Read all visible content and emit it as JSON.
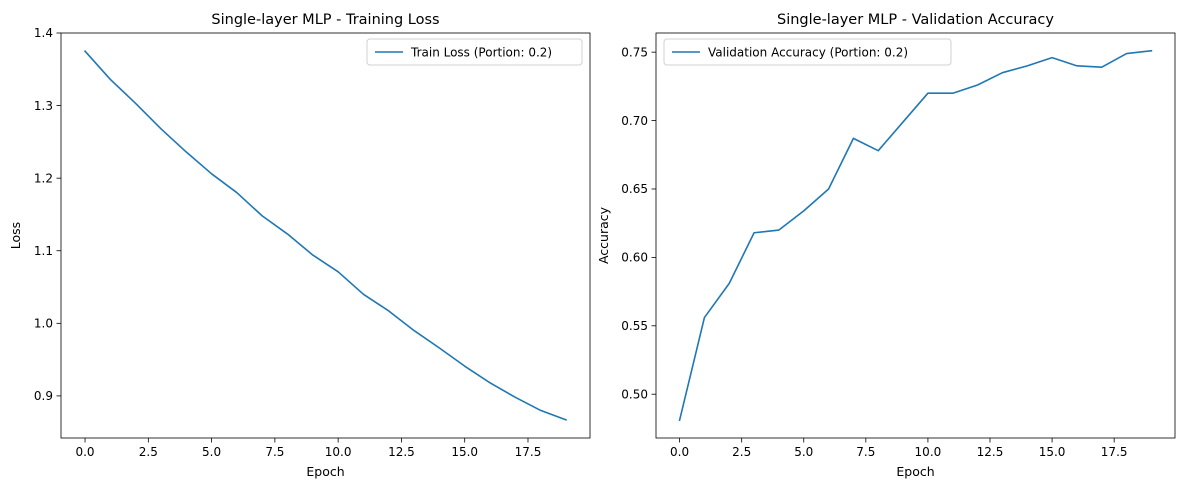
{
  "chart_data": [
    {
      "type": "line",
      "title": "Single-layer MLP - Training Loss",
      "xlabel": "Epoch",
      "ylabel": "Loss",
      "xlim": [
        -0.95,
        19.95
      ],
      "ylim": [
        0.842,
        1.4
      ],
      "xticks": [
        0.0,
        2.5,
        5.0,
        7.5,
        10.0,
        12.5,
        15.0,
        17.5
      ],
      "xtick_labels": [
        "0.0",
        "2.5",
        "5.0",
        "7.5",
        "10.0",
        "12.5",
        "15.0",
        "17.5"
      ],
      "yticks": [
        0.9,
        1.0,
        1.1,
        1.2,
        1.3,
        1.4
      ],
      "ytick_labels": [
        "0.9",
        "1.0",
        "1.1",
        "1.2",
        "1.3",
        "1.4"
      ],
      "grid": false,
      "legend_position": "top-right",
      "series": [
        {
          "name": "Train Loss (Portion: 0.2)",
          "color": "#1f77b4",
          "x": [
            0,
            1,
            2,
            3,
            4,
            5,
            6,
            7,
            8,
            9,
            10,
            11,
            12,
            13,
            14,
            15,
            16,
            17,
            18,
            19
          ],
          "y": [
            1.375,
            1.336,
            1.303,
            1.268,
            1.236,
            1.206,
            1.18,
            1.148,
            1.123,
            1.094,
            1.071,
            1.04,
            1.017,
            0.99,
            0.966,
            0.941,
            0.918,
            0.898,
            0.88,
            0.867
          ]
        }
      ]
    },
    {
      "type": "line",
      "title": "Single-layer MLP - Validation Accuracy",
      "xlabel": "Epoch",
      "ylabel": "Accuracy",
      "xlim": [
        -0.95,
        19.95
      ],
      "ylim": [
        0.468,
        0.764
      ],
      "xticks": [
        0.0,
        2.5,
        5.0,
        7.5,
        10.0,
        12.5,
        15.0,
        17.5
      ],
      "xtick_labels": [
        "0.0",
        "2.5",
        "5.0",
        "7.5",
        "10.0",
        "12.5",
        "15.0",
        "17.5"
      ],
      "yticks": [
        0.5,
        0.55,
        0.6,
        0.65,
        0.7,
        0.75
      ],
      "ytick_labels": [
        "0.50",
        "0.55",
        "0.60",
        "0.65",
        "0.70",
        "0.75"
      ],
      "grid": false,
      "legend_position": "top-left",
      "series": [
        {
          "name": "Validation Accuracy (Portion: 0.2)",
          "color": "#1f77b4",
          "x": [
            0,
            1,
            2,
            3,
            4,
            5,
            6,
            7,
            8,
            9,
            10,
            11,
            12,
            13,
            14,
            15,
            16,
            17,
            18,
            19
          ],
          "y": [
            0.481,
            0.556,
            0.581,
            0.618,
            0.62,
            0.634,
            0.65,
            0.687,
            0.678,
            0.699,
            0.72,
            0.72,
            0.726,
            0.735,
            0.74,
            0.746,
            0.74,
            0.739,
            0.749,
            0.751
          ]
        }
      ]
    }
  ]
}
